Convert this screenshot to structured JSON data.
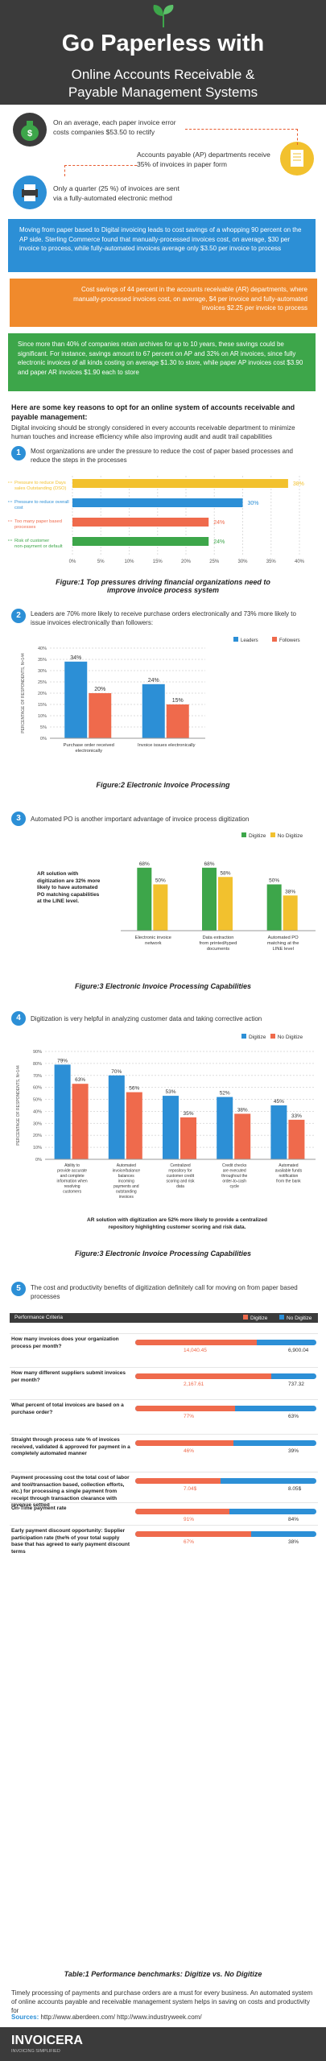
{
  "header": {
    "title_line1": "Go Paperless with",
    "title_line2": "Online Accounts Receivable &",
    "title_line3": "Payable Management Systems"
  },
  "intro_stats": [
    {
      "text": "On an average, each paper invoice error costs companies $53.50 to rectify"
    },
    {
      "text": "Accounts payable (AP) departments receive 35% of invoices in paper form"
    },
    {
      "text": "Only a quarter (25 %) of invoices are sent via a fully-automated electronic method"
    }
  ],
  "banners": [
    {
      "text": "Moving from paper based to Digital invoicing leads to cost savings of a whopping 90 percent on the AP side. Sterling Commerce found that manually-processed invoices cost, on average, $30 per invoice to process, while fully-automated invoices average only $3.50 per invoice to process",
      "color": "#2c8fd6"
    },
    {
      "text": "Cost savings of 44 percent in the accounts receivable (AR) departments, where manually-processed invoices cost, on average, $4 per invoice and fully-automated invoices $2.25 per invoice to process",
      "color": "#f08a2c"
    },
    {
      "text": "Since more than 40% of companies retain archives for up to 10 years, these savings could be significant. For instance, savings amount to 67 percent on AP and 32% on AR invoices, since fully electronic invoices of all kinds costing on average $1.30 to store, while paper AP invoices cost $3.90 and paper AR invoices $1.90 each to store",
      "color": "#3da64a"
    }
  ],
  "reasons_heading": "Here are some key reasons to opt for an online system of accounts receivable and payable management:",
  "reasons_intro": "Digital invoicing should be strongly considered in every accounts receivable department to minimize human touches and increase efficiency while also improving audit and audit trail capabilities",
  "sections": {
    "s1": {
      "num": "1",
      "text": "Most organizations are under the pressure to reduce the cost of paper based processes and reduce the steps in the processes"
    },
    "s2": {
      "num": "2",
      "text": "Leaders are 70% more likely to receive purchase orders electronically and 73% more likely to issue invoices electronically than followers:"
    },
    "s3": {
      "num": "3",
      "text": "Automated PO is another important advantage of invoice process digitization"
    },
    "s4": {
      "num": "4",
      "text": "Digitization is very helpful in analyzing customer data and taking corrective action"
    },
    "s5": {
      "num": "5",
      "text": "The cost and productivity benefits of digitization definitely call for moving on from paper based processes"
    }
  },
  "captions": {
    "fig1_line1": "Figure:1 Top pressures driving financial organizations need to",
    "fig1_line2": "improve invoice process system",
    "fig2": "Figure:2 Electronic Invoice Processing",
    "fig3a": "Figure:3 Electronic Invoice Processing Capabilities",
    "fig3b": "Figure:3 Electronic Invoice Processing Capabilities",
    "table1": "Table:1 Performance benchmarks: Digitize vs. No Digitize"
  },
  "chart_data": [
    {
      "type": "bar",
      "orientation": "horizontal",
      "categories": [
        "Pressure to reduce Days sales Outstanding (DSO)",
        "Pressure to reduce overall cost",
        "Too many paper based processes",
        "Risk of customer non-payment or default"
      ],
      "values": [
        38,
        30,
        24,
        24
      ],
      "value_labels": [
        "38%",
        "30%",
        "24%",
        "24%"
      ],
      "colors": [
        "#f2c12e",
        "#2c8fd6",
        "#ef6a4c",
        "#3da64a"
      ],
      "xlim": [
        0,
        40
      ],
      "xticks": [
        "0%",
        "5%",
        "10%",
        "15%",
        "20%",
        "25%",
        "30%",
        "35%",
        "40%"
      ]
    },
    {
      "type": "bar",
      "categories": [
        "Purchase order received electronically",
        "Invoice issues electronically"
      ],
      "series": [
        {
          "name": "Leaders",
          "values": [
            34,
            24
          ],
          "color": "#2c8fd6"
        },
        {
          "name": "Followers",
          "values": [
            20,
            15
          ],
          "color": "#ef6a4c"
        }
      ],
      "ylabel": "PERCENTAGE OF RESPONDENTS, N=144",
      "ylim": [
        0,
        40
      ],
      "yticks": [
        "0%",
        "5%",
        "10%",
        "15%",
        "20%",
        "25%",
        "30%",
        "35%",
        "40%"
      ]
    },
    {
      "type": "bar",
      "categories": [
        "Electronic invoice network",
        "Data extraction from printed/typed documents",
        "Automated PO matching at the LINE level"
      ],
      "series": [
        {
          "name": "Digitize",
          "values": [
            68,
            68,
            50
          ],
          "color": "#3da64a"
        },
        {
          "name": "No Digitize",
          "values": [
            50,
            58,
            38
          ],
          "color": "#f2c12e"
        }
      ],
      "annotation": "AR solution with digitization are 32% more likely to have automated PO matching capabilities at the LINE level."
    },
    {
      "type": "bar",
      "categories": [
        "Ability to provide accurate and complete information when resolving customers",
        "Automated invoice/balance balances incoming payments and outstanding invoices",
        "Centralized repository for customer credit scoring and risk data",
        "Credit checks are executed throughout the order-to-cash cycle",
        "Automated available funds notification from the bank"
      ],
      "series": [
        {
          "name": "Digitize",
          "values": [
            79,
            70,
            53,
            52,
            45
          ],
          "color": "#2c8fd6"
        },
        {
          "name": "No Digitize",
          "values": [
            63,
            56,
            35,
            38,
            33
          ],
          "color": "#ef6a4c"
        }
      ],
      "ylabel": "PERCENTAGE OF RESPONDENTS, N=144",
      "ylim": [
        0,
        90
      ],
      "yticks": [
        "0%",
        "10%",
        "20%",
        "30%",
        "40%",
        "50%",
        "60%",
        "70%",
        "80%",
        "90%"
      ],
      "annotation": "AR solution with digitization are 52% more likely to provide a centralized repository highlighting customer scoring and risk data."
    },
    {
      "type": "table",
      "header": [
        "Performance Criteria",
        "Digitize",
        "No Digitize"
      ],
      "rows": [
        {
          "label": "How many invoices does your organization process per month?",
          "digitize": "14,040.45",
          "no_digitize": "6,900.04",
          "frac_d": 0.67,
          "frac_n": 0.33
        },
        {
          "label": "How many different suppliers submit invoices per month?",
          "digitize": "2,167.61",
          "no_digitize": "737.32",
          "frac_d": 0.75,
          "frac_n": 0.25
        },
        {
          "label": "What percent of total invoices are based on a purchase order?",
          "digitize": "77%",
          "no_digitize": "63%",
          "frac_d": 0.55,
          "frac_n": 0.45
        },
        {
          "label": "Straight through process rate % of invoices received, validated & approved for payment in a completely automated manner",
          "digitize": "46%",
          "no_digitize": "39%",
          "frac_d": 0.54,
          "frac_n": 0.46
        },
        {
          "label": "Payment processing cost the total cost of labor and tool/transaction based, collection efforts, etc.) for processing a single payment from receipt through transaction clearance with revenue settled",
          "digitize": "7.04$",
          "no_digitize": "8.05$",
          "frac_d": 0.47,
          "frac_n": 0.53
        },
        {
          "label": "On-Time payment rate",
          "digitize": "91%",
          "no_digitize": "84%",
          "frac_d": 0.52,
          "frac_n": 0.48
        },
        {
          "label": "Early payment discount opportunity: Supplier participation rate (the% of your total supply base that has agreed to early payment discount terms",
          "digitize": "67%",
          "no_digitize": "38%",
          "frac_d": 0.64,
          "frac_n": 0.36
        }
      ]
    }
  ],
  "chart3_legend": {
    "d": "Digitize",
    "n": "No Digitize"
  },
  "chart4_legend": {
    "d": "Digitize",
    "n": "No Digitize"
  },
  "closing_text": "Timely processing of payments and purchase orders are a must for every business. An automated system of online accounts payable and receivable management system helps in saving on costs and productivity for",
  "sources": {
    "label": "Sources:",
    "links": "http://www.aberdeen.com/  http://www.industryweek.com/"
  },
  "footer": {
    "brand": "INVOICERA",
    "tagline": "INVOICING SIMPLIFIED"
  },
  "colors": {
    "dark": "#3b3b3b",
    "blue": "#2c8fd6",
    "orange": "#f08a2c",
    "green": "#3da64a",
    "red": "#ef6a4c",
    "yellow": "#f2c12e"
  }
}
